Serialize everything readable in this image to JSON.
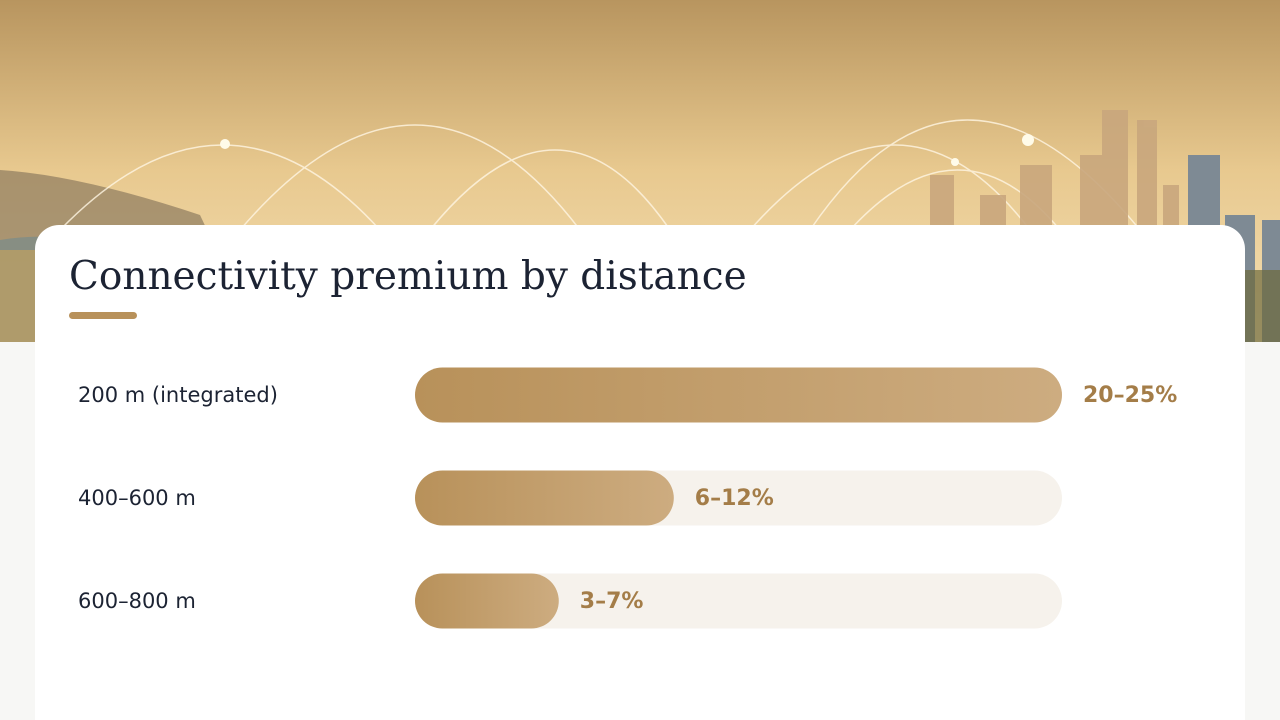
{
  "chart_data": {
    "type": "bar",
    "orientation": "horizontal",
    "title": "Connectivity premium by distance",
    "categories": [
      "200 m (integrated)",
      "400–600 m",
      "600–800 m"
    ],
    "values": [
      22.5,
      9,
      5
    ],
    "value_labels": [
      "20–25%",
      "6–12%",
      "3–7%"
    ],
    "color": "#b8915a",
    "xlim": [
      0,
      22.5
    ]
  }
}
